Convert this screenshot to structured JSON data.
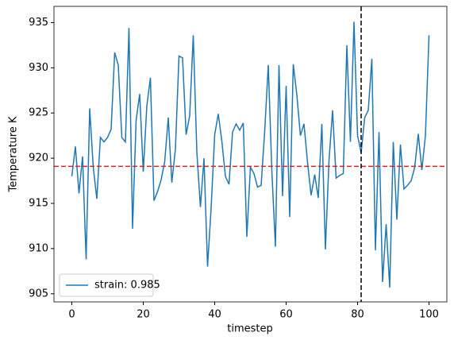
{
  "chart_data": {
    "type": "line",
    "x": [
      0,
      1,
      2,
      3,
      4,
      5,
      6,
      7,
      8,
      9,
      10,
      11,
      12,
      13,
      14,
      15,
      16,
      17,
      18,
      19,
      20,
      21,
      22,
      23,
      24,
      25,
      26,
      27,
      28,
      29,
      30,
      31,
      32,
      33,
      34,
      35,
      36,
      37,
      38,
      39,
      40,
      41,
      42,
      43,
      44,
      45,
      46,
      47,
      48,
      49,
      50,
      51,
      52,
      53,
      54,
      55,
      56,
      57,
      58,
      59,
      60,
      61,
      62,
      63,
      64,
      65,
      66,
      67,
      68,
      69,
      70,
      71,
      72,
      73,
      74,
      75,
      76,
      77,
      78,
      79,
      80,
      81,
      82,
      83,
      84,
      85,
      86,
      87,
      88,
      89,
      90,
      91,
      92,
      93,
      94,
      95,
      96,
      97,
      98,
      99,
      100
    ],
    "series": [
      {
        "name": "strain: 0.985",
        "color": "#1f77b4",
        "values": [
          918,
          921.3,
          916.1,
          920.2,
          908.8,
          925.5,
          919,
          915.5,
          922.3,
          921.8,
          922.3,
          923.2,
          931.7,
          930.3,
          922.3,
          921.8,
          934.4,
          912.2,
          924.2,
          927.1,
          918.5,
          925.8,
          928.9,
          915.3,
          916.3,
          917.6,
          919.6,
          924.5,
          917.3,
          921,
          931.3,
          931.1,
          922.6,
          924.7,
          933.6,
          920.7,
          914.6,
          920,
          908,
          914.5,
          922.6,
          924.9,
          921.9,
          918,
          917.1,
          922.9,
          923.8,
          923.1,
          923.9,
          911.3,
          919,
          918.3,
          916.8,
          917,
          923,
          930.3,
          918.6,
          910.2,
          930.3,
          915.8,
          928,
          913.5,
          930.4,
          927,
          922.5,
          923.8,
          919.5,
          915.9,
          918.2,
          915.6,
          923.8,
          909.9,
          919.7,
          925.3,
          917.8,
          918.1,
          918.3,
          932.5,
          921.8,
          935.1,
          922.5,
          920.6,
          924.5,
          925.3,
          931,
          909.8,
          922.9,
          906.3,
          912.7,
          905.7,
          921.8,
          913.2,
          921.5,
          916.6,
          917,
          917.5,
          919,
          922.7,
          918.7,
          922.5,
          933.6
        ]
      }
    ],
    "xlabel": "timestep",
    "ylabel": "Temperature K",
    "xlim": [
      -5,
      105
    ],
    "ylim": [
      904.1,
      936.8
    ],
    "xticks": [
      0,
      20,
      40,
      60,
      80,
      100
    ],
    "yticks": [
      905,
      910,
      915,
      920,
      925,
      930,
      935
    ],
    "hlines": [
      {
        "value": 919.1,
        "color": "#d62728"
      }
    ],
    "vlines": [
      {
        "value": 81,
        "color": "#000000"
      }
    ],
    "legend": "lower left"
  }
}
